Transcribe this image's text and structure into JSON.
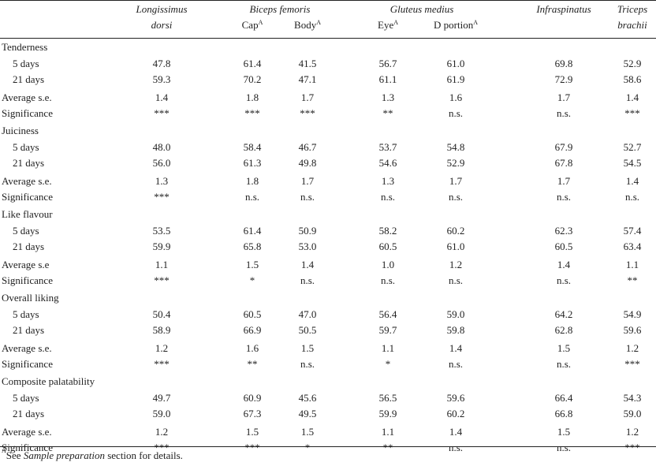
{
  "columns": [
    {
      "line1": "Longissimus",
      "line2": "dorsi",
      "sub": "",
      "sup": ""
    },
    {
      "line1": "",
      "line2": "",
      "sub": "Cap",
      "sup": "A"
    },
    {
      "line1": "",
      "line2": "",
      "sub": "Body",
      "sup": "A"
    },
    {
      "line1": "",
      "line2": "",
      "sub": "Eye",
      "sup": "A"
    },
    {
      "line1": "",
      "line2": "",
      "sub": "D portion",
      "sup": "A"
    },
    {
      "line1": "Infraspinatus",
      "line2": "",
      "sub": "",
      "sup": ""
    },
    {
      "line1": "Triceps",
      "line2": "brachii",
      "sub": "",
      "sup": ""
    }
  ],
  "groups": [
    {
      "name": "Biceps femoris"
    },
    {
      "name": "Gluteus medius"
    }
  ],
  "sections": [
    {
      "title": "Tenderness",
      "rows": [
        {
          "label": "5 days",
          "values": [
            "47.8",
            "61.4",
            "41.5",
            "56.7",
            "61.0",
            "69.8",
            "52.9"
          ]
        },
        {
          "label": "21 days",
          "values": [
            "59.3",
            "70.2",
            "47.1",
            "61.1",
            "61.9",
            "72.9",
            "58.6"
          ]
        }
      ],
      "se": {
        "label": "Average s.e.",
        "values": [
          "1.4",
          "1.8",
          "1.7",
          "1.3",
          "1.6",
          "1.7",
          "1.4"
        ]
      },
      "sig": {
        "label": "Significance",
        "values": [
          "***",
          "***",
          "***",
          "**",
          "n.s.",
          "n.s.",
          "***"
        ]
      }
    },
    {
      "title": "Juiciness",
      "rows": [
        {
          "label": "5 days",
          "values": [
            "48.0",
            "58.4",
            "46.7",
            "53.7",
            "54.8",
            "67.9",
            "52.7"
          ]
        },
        {
          "label": "21 days",
          "values": [
            "56.0",
            "61.3",
            "49.8",
            "54.6",
            "52.9",
            "67.8",
            "54.5"
          ]
        }
      ],
      "se": {
        "label": "Average s.e.",
        "values": [
          "1.3",
          "1.8",
          "1.7",
          "1.3",
          "1.7",
          "1.7",
          "1.4"
        ]
      },
      "sig": {
        "label": "Significance",
        "values": [
          "***",
          "n.s.",
          "n.s.",
          "n.s.",
          "n.s.",
          "n.s.",
          "n.s."
        ]
      }
    },
    {
      "title": "Like flavour",
      "rows": [
        {
          "label": "5 days",
          "values": [
            "53.5",
            "61.4",
            "50.9",
            "58.2",
            "60.2",
            "62.3",
            "57.4"
          ]
        },
        {
          "label": "21 days",
          "values": [
            "59.9",
            "65.8",
            "53.0",
            "60.5",
            "61.0",
            "60.5",
            "63.4"
          ]
        }
      ],
      "se": {
        "label": "Average s.e",
        "values": [
          "1.1",
          "1.5",
          "1.4",
          "1.0",
          "1.2",
          "1.4",
          "1.1"
        ]
      },
      "sig": {
        "label": "Significance",
        "values": [
          "***",
          "*",
          "n.s.",
          "n.s.",
          "n.s.",
          "n.s.",
          "**"
        ]
      }
    },
    {
      "title": "Overall liking",
      "rows": [
        {
          "label": "5 days",
          "values": [
            "50.4",
            "60.5",
            "47.0",
            "56.4",
            "59.0",
            "64.2",
            "54.9"
          ]
        },
        {
          "label": "21 days",
          "values": [
            "58.9",
            "66.9",
            "50.5",
            "59.7",
            "59.8",
            "62.8",
            "59.6"
          ]
        }
      ],
      "se": {
        "label": "Average s.e.",
        "values": [
          "1.2",
          "1.6",
          "1.5",
          "1.1",
          "1.4",
          "1.5",
          "1.2"
        ]
      },
      "sig": {
        "label": "Significance",
        "values": [
          "***",
          "**",
          "n.s.",
          "*",
          "n.s.",
          "n.s.",
          "***"
        ]
      }
    },
    {
      "title": "Composite palatability",
      "rows": [
        {
          "label": "5 days",
          "values": [
            "49.7",
            "60.9",
            "45.6",
            "56.5",
            "59.6",
            "66.4",
            "54.3"
          ]
        },
        {
          "label": "21 days",
          "values": [
            "59.0",
            "67.3",
            "49.5",
            "59.9",
            "60.2",
            "66.8",
            "59.0"
          ]
        }
      ],
      "se": {
        "label": "Average s.e.",
        "values": [
          "1.2",
          "1.5",
          "1.5",
          "1.1",
          "1.4",
          "1.5",
          "1.2"
        ]
      },
      "sig": {
        "label": "Significance",
        "values": [
          "***",
          "***",
          "*",
          "**",
          "n.s.",
          "n.s.",
          "***"
        ]
      }
    }
  ],
  "footnote": {
    "sup": "A",
    "pre": "See ",
    "italic": "Sample preparation",
    "post": " section for details."
  }
}
